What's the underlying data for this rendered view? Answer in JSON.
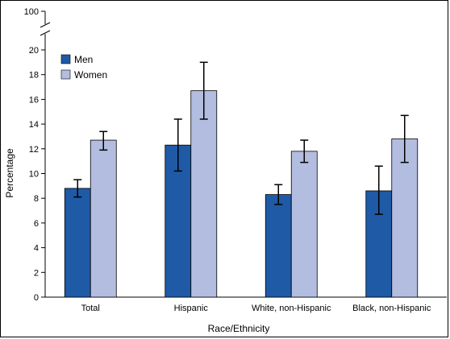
{
  "chart_data": {
    "type": "bar",
    "categories": [
      "Total",
      "Hispanic",
      "White, non-Hispanic",
      "Black, non-Hispanic"
    ],
    "series": [
      {
        "name": "Men",
        "color": "#1f5aa6",
        "values": [
          8.8,
          12.3,
          8.3,
          8.6
        ],
        "ci_low": [
          8.1,
          10.2,
          7.5,
          6.7
        ],
        "ci_high": [
          9.5,
          14.4,
          9.1,
          10.6
        ]
      },
      {
        "name": "Women",
        "color": "#b3bde0",
        "values": [
          12.7,
          16.7,
          11.8,
          12.8
        ],
        "ci_low": [
          11.9,
          14.4,
          10.9,
          10.9
        ],
        "ci_high": [
          13.4,
          19.0,
          12.7,
          14.7
        ]
      }
    ],
    "xlabel": "Race/Ethnicity",
    "ylabel": "Percentage",
    "ylim": [
      0,
      20
    ],
    "yticks": [
      "0",
      "2",
      "4",
      "6",
      "8",
      "10",
      "12",
      "14",
      "16",
      "18",
      "20"
    ],
    "axis_break_top_label": "100",
    "legend_position": "top-left",
    "grid": false
  }
}
